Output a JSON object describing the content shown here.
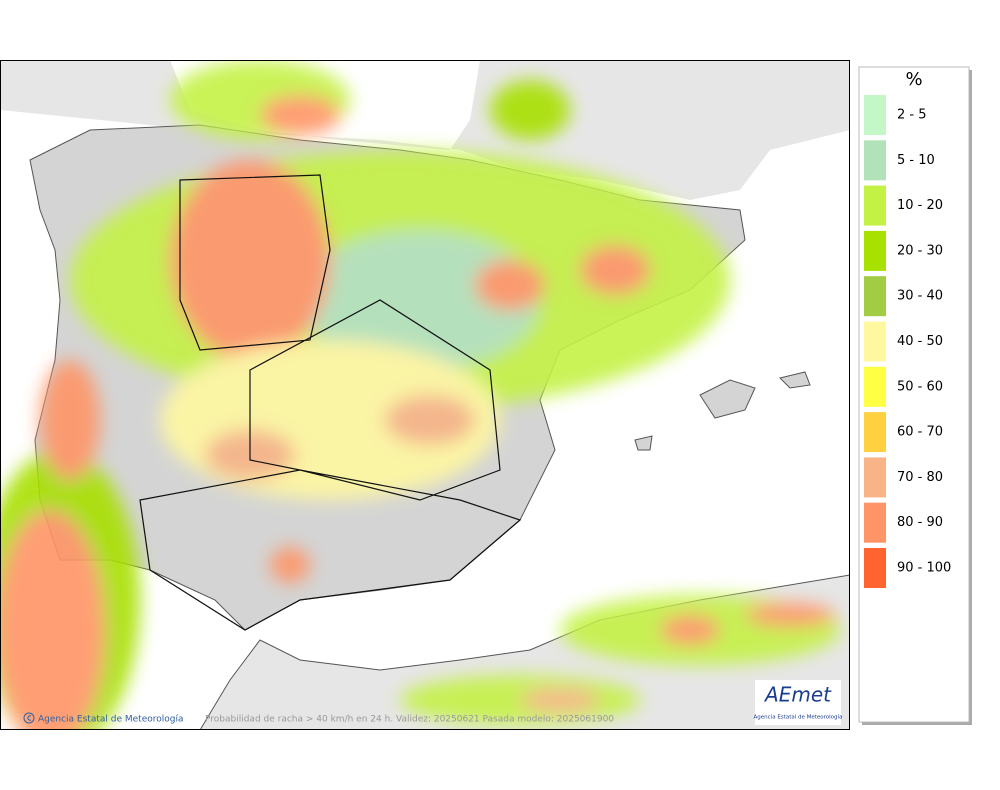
{
  "legend": {
    "title": "%",
    "items": [
      {
        "label": "2 - 5",
        "color": "#c4f7c8"
      },
      {
        "label": "5 - 10",
        "color": "#b2e2ba"
      },
      {
        "label": "10 - 20",
        "color": "#c4f244"
      },
      {
        "label": "20 - 30",
        "color": "#a8e000"
      },
      {
        "label": "30 - 40",
        "color": "#a2cc44"
      },
      {
        "label": "40 - 50",
        "color": "#fff8a0"
      },
      {
        "label": "50 - 60",
        "color": "#ffff44"
      },
      {
        "label": "60 - 70",
        "color": "#ffd040"
      },
      {
        "label": "70 - 80",
        "color": "#f8b486"
      },
      {
        "label": "80 - 90",
        "color": "#ff9466"
      },
      {
        "label": "90 - 100",
        "color": "#ff6430"
      }
    ]
  },
  "footer": {
    "credit": "Agencia Estatal de Meteorología",
    "caption": "Probabilidad de racha > 40 km/h en 24 h. Validez: 20250621 Pasada modelo: 2025061900"
  },
  "logo": {
    "name": "AEmet",
    "subtitle": "Agencia Estatal de Meteorología"
  }
}
